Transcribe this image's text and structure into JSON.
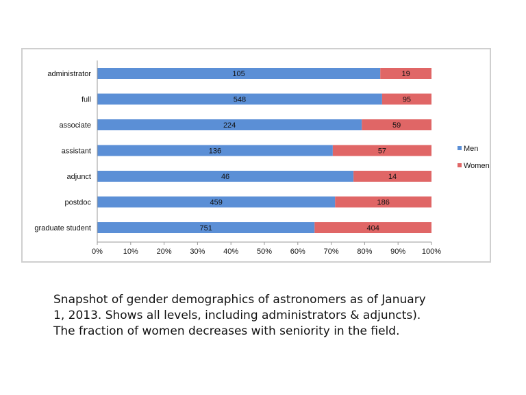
{
  "chart_data": {
    "type": "bar",
    "orientation": "horizontal",
    "stacked": "percent",
    "categories": [
      "administrator",
      "full",
      "associate",
      "assistant",
      "adjunct",
      "postdoc",
      "graduate student"
    ],
    "series": [
      {
        "name": "Men",
        "color": "#5b8fd6",
        "values": [
          105,
          548,
          224,
          136,
          46,
          459,
          751
        ]
      },
      {
        "name": "Women",
        "color": "#e06666",
        "values": [
          19,
          95,
          59,
          57,
          14,
          186,
          404
        ]
      }
    ],
    "x_ticks": [
      "0%",
      "10%",
      "20%",
      "30%",
      "40%",
      "50%",
      "60%",
      "70%",
      "80%",
      "90%",
      "100%"
    ],
    "xlim": [
      0,
      100
    ],
    "legend_position": "right",
    "grid": false
  },
  "caption": {
    "lines": [
      "Snapshot of gender demographics of astronomers as of January",
      "1, 2013. Shows all levels, including administrators & adjuncts).",
      "The fraction of women decreases with seniority in the field."
    ]
  }
}
